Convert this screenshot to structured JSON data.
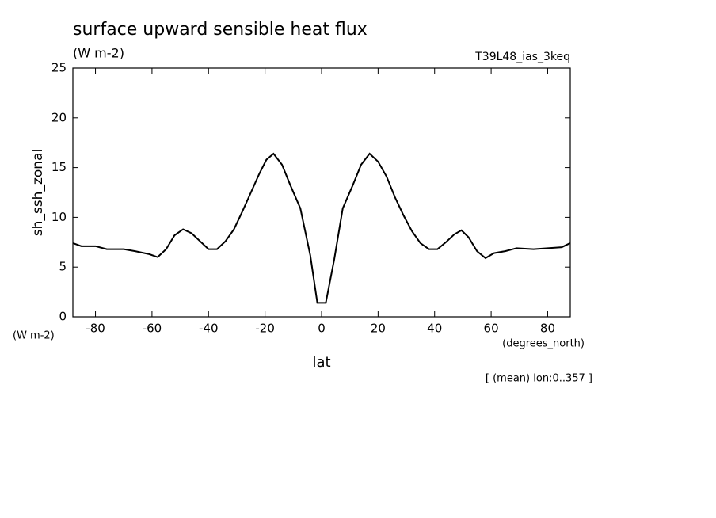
{
  "chart_data": {
    "type": "line",
    "title": "surface upward sensible heat flux",
    "subtitle": "(W m-2)",
    "run_label": "T39L48_ias_3keq",
    "y_label": "sh_ssh_zonal",
    "y_units": "(W m-2)",
    "x_label": "lat",
    "x_units": "(degrees_north)",
    "note": "[ (mean) lon:0..357 ]",
    "x": [
      -87.9,
      -85,
      -80,
      -76,
      -70,
      -66,
      -61,
      -58,
      -55,
      -52,
      -49,
      -46,
      -43,
      -40,
      -37,
      -34,
      -31,
      -28,
      -25,
      -22,
      -19.5,
      -17,
      -14,
      -11,
      -7.5,
      -4,
      -1.5,
      1.5,
      4.5,
      7.5,
      11,
      14,
      17,
      20,
      23,
      26,
      29,
      32,
      35,
      38,
      41,
      44,
      47,
      49.5,
      52,
      55,
      58,
      61,
      65,
      69,
      75,
      80,
      85,
      87.9
    ],
    "series": [
      {
        "color": "#000000",
        "values": [
          7.4,
          7.1,
          7.1,
          6.8,
          6.8,
          6.6,
          6.3,
          6.0,
          6.8,
          8.2,
          8.8,
          8.4,
          7.6,
          6.8,
          6.8,
          7.6,
          8.8,
          10.6,
          12.5,
          14.4,
          15.8,
          16.4,
          15.3,
          13.2,
          10.9,
          6.2,
          1.4,
          1.4,
          5.8,
          10.9,
          13.2,
          15.3,
          16.4,
          15.6,
          14.1,
          12.0,
          10.2,
          8.6,
          7.4,
          6.8,
          6.8,
          7.5,
          8.3,
          8.7,
          8.0,
          6.6,
          5.9,
          6.4,
          6.6,
          6.9,
          6.8,
          6.9,
          7.0,
          7.4
        ]
      }
    ],
    "xlim": [
      -88,
      88
    ],
    "ylim": [
      0,
      25
    ],
    "xticks": [
      -80,
      -60,
      -40,
      -20,
      0,
      20,
      40,
      60,
      80
    ],
    "yticks": [
      0,
      5,
      10,
      15,
      20,
      25
    ]
  }
}
